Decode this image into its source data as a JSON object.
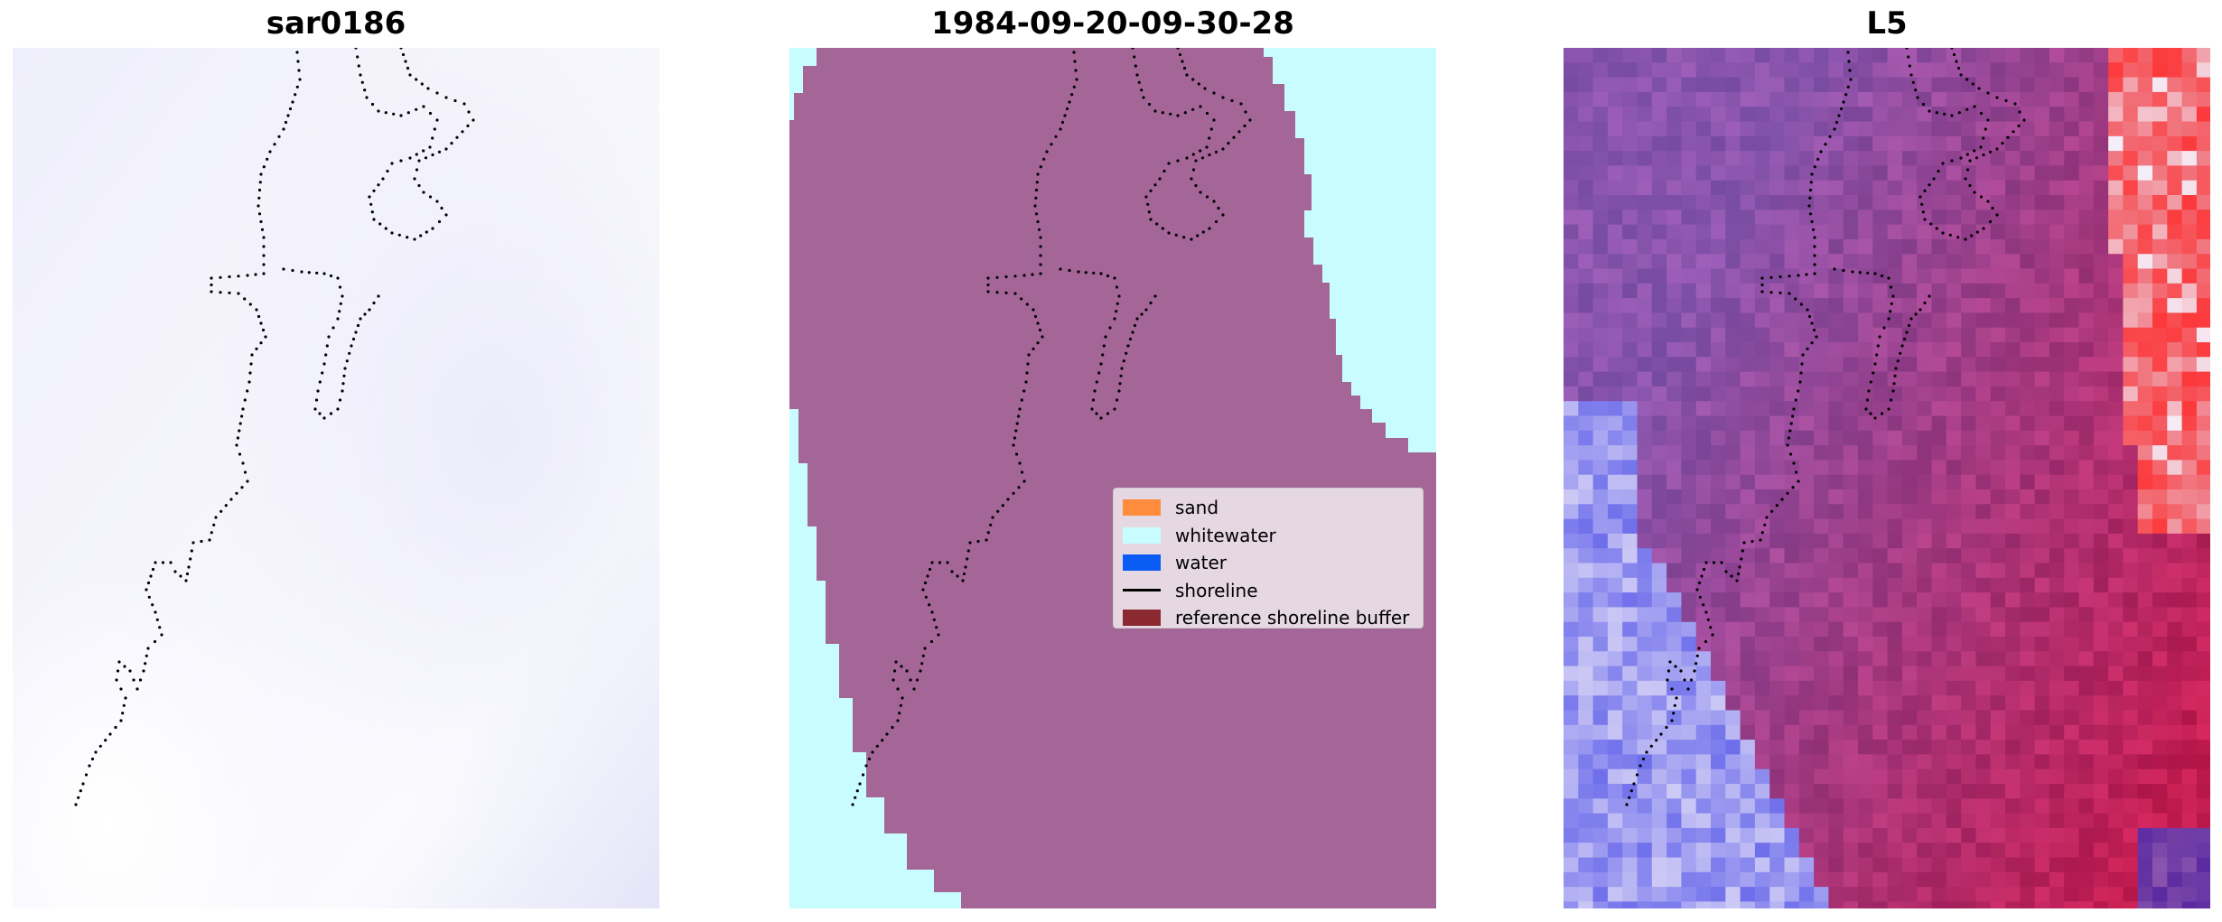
{
  "panels": [
    {
      "title": "sar0186"
    },
    {
      "title": "1984-09-20-09-30-28"
    },
    {
      "title": "L5"
    }
  ],
  "legend": {
    "placement": "center-right of middle panel",
    "items": [
      {
        "label": "sand",
        "kind": "patch",
        "color": "#ff8c3c"
      },
      {
        "label": "whitewater",
        "kind": "patch",
        "color": "#c8fcff"
      },
      {
        "label": "water",
        "kind": "patch",
        "color": "#0a5cf5"
      },
      {
        "label": "shoreline",
        "kind": "line",
        "color": "#000000"
      },
      {
        "label": "reference shoreline buffer",
        "kind": "patch",
        "color": "#8a2a30"
      }
    ]
  },
  "colors": {
    "classification_fill": "#a46696",
    "whitewater": "#c8fcff",
    "sar_background": "#f2f1fc",
    "l5_purple": "#8a55ad",
    "l5_red": "#c21d52",
    "l5_blue": "#6f6ff0"
  }
}
